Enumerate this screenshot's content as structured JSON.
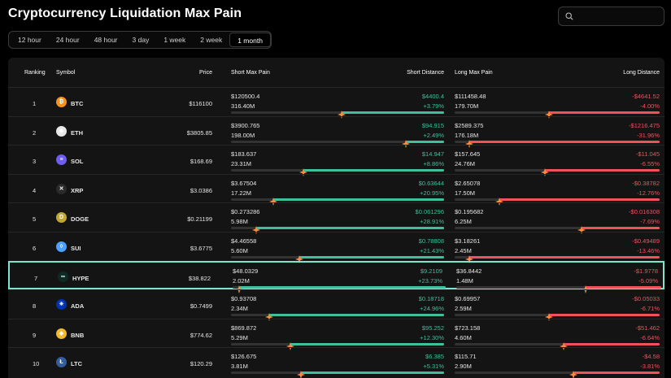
{
  "page_title": "Cryptocurrency Liquidation Max Pain",
  "tabs": [
    {
      "label": "12 hour",
      "active": false
    },
    {
      "label": "24 hour",
      "active": false
    },
    {
      "label": "48 hour",
      "active": false
    },
    {
      "label": "3 day",
      "active": false
    },
    {
      "label": "1 week",
      "active": false
    },
    {
      "label": "2 week",
      "active": false
    },
    {
      "label": "1 month",
      "active": true
    }
  ],
  "columns": {
    "ranking": "Ranking",
    "symbol": "Symbol",
    "price": "Price",
    "short_max_pain": "Short Max Pain",
    "short_distance": "Short Distance",
    "long_max_pain": "Long Max Pain",
    "long_distance": "Long Distance"
  },
  "colors": {
    "positive": "#3fbf9c",
    "negative": "#f0525c",
    "highlight_border": "#7fe3cf",
    "marker": "#ff8a3d"
  },
  "rows": [
    {
      "rank": "1",
      "symbol": "BTC",
      "icon": "bitcoin-icon",
      "icon_color": "#f7931a",
      "icon_glyph": "₿",
      "price": "$116100",
      "short_max_pain": "$120500.4",
      "short_oi": "316.40M",
      "short_distance_value": "$4400.4",
      "short_distance_pct": "+3.79%",
      "long_max_pain": "$111458.48",
      "long_oi": "179.70M",
      "long_distance_value": "-$4641.52",
      "long_distance_pct": "-4.00%",
      "short_bar_level": 0.48,
      "long_bar_level": 0.54,
      "highlighted": false
    },
    {
      "rank": "2",
      "symbol": "ETH",
      "icon": "ethereum-icon",
      "icon_color": "#e8e8e8",
      "icon_glyph": "◆",
      "price": "$3805.85",
      "short_max_pain": "$3900.765",
      "short_oi": "198.00M",
      "short_distance_value": "$94.915",
      "short_distance_pct": "+2.49%",
      "long_max_pain": "$2589.375",
      "long_oi": "176.18M",
      "long_distance_value": "-$1216.475",
      "long_distance_pct": "-31.96%",
      "short_bar_level": 0.18,
      "long_bar_level": 0.93,
      "highlighted": false
    },
    {
      "rank": "3",
      "symbol": "SOL",
      "icon": "solana-icon",
      "icon_color": "#6f5cf0",
      "icon_glyph": "≡",
      "price": "$168.69",
      "short_max_pain": "$183.637",
      "short_oi": "23.31M",
      "short_distance_value": "$14.947",
      "short_distance_pct": "+8.86%",
      "long_max_pain": "$157.645",
      "long_oi": "24.76M",
      "long_distance_value": "-$11.045",
      "long_distance_pct": "-6.55%",
      "short_bar_level": 0.66,
      "long_bar_level": 0.56,
      "highlighted": false
    },
    {
      "rank": "4",
      "symbol": "XRP",
      "icon": "xrp-icon",
      "icon_color": "#2a2a2a",
      "icon_glyph": "✕",
      "price": "$3.0386",
      "short_max_pain": "$3.67504",
      "short_oi": "17.22M",
      "short_distance_value": "$0.63644",
      "short_distance_pct": "+20.95%",
      "long_max_pain": "$2.65078",
      "long_oi": "17.50M",
      "long_distance_value": "-$0.38782",
      "long_distance_pct": "-12.76%",
      "short_bar_level": 0.8,
      "long_bar_level": 0.78,
      "highlighted": false
    },
    {
      "rank": "5",
      "symbol": "DOGE",
      "icon": "dogecoin-icon",
      "icon_color": "#c2a633",
      "icon_glyph": "D",
      "price": "$0.21199",
      "short_max_pain": "$0.273286",
      "short_oi": "5.98M",
      "short_distance_value": "$0.061296",
      "short_distance_pct": "+28.91%",
      "long_max_pain": "$0.195682",
      "long_oi": "6.25M",
      "long_distance_value": "-$0.016308",
      "long_distance_pct": "-7.69%",
      "short_bar_level": 0.88,
      "long_bar_level": 0.38,
      "highlighted": false
    },
    {
      "rank": "6",
      "symbol": "SUI",
      "icon": "sui-icon",
      "icon_color": "#4da2ff",
      "icon_glyph": "◊",
      "price": "$3.6775",
      "short_max_pain": "$4.46558",
      "short_oi": "5.60M",
      "short_distance_value": "$0.78808",
      "short_distance_pct": "+21.43%",
      "long_max_pain": "$3.18261",
      "long_oi": "2.45M",
      "long_distance_value": "-$0.49489",
      "long_distance_pct": "-13.46%",
      "short_bar_level": 0.68,
      "long_bar_level": 0.93,
      "highlighted": false
    },
    {
      "rank": "7",
      "symbol": "HYPE",
      "icon": "hyperliquid-icon",
      "icon_color": "#0d2b25",
      "icon_glyph": "∞",
      "price": "$38.822",
      "short_max_pain": "$48.0329",
      "short_oi": "2.02M",
      "short_distance_value": "$9.2109",
      "short_distance_pct": "+23.73%",
      "long_max_pain": "$36.8442",
      "long_oi": "1.48M",
      "long_distance_value": "-$1.9778",
      "long_distance_pct": "-5.09%",
      "short_bar_level": 0.97,
      "long_bar_level": 0.37,
      "highlighted": true
    },
    {
      "rank": "8",
      "symbol": "ADA",
      "icon": "cardano-icon",
      "icon_color": "#0033ad",
      "icon_glyph": "✳",
      "price": "$0.7499",
      "short_max_pain": "$0.93708",
      "short_oi": "2.34M",
      "short_distance_value": "$0.18718",
      "short_distance_pct": "+24.96%",
      "long_max_pain": "$0.69957",
      "long_oi": "2.59M",
      "long_distance_value": "-$0.05033",
      "long_distance_pct": "-6.71%",
      "short_bar_level": 0.82,
      "long_bar_level": 0.54,
      "highlighted": false
    },
    {
      "rank": "9",
      "symbol": "BNB",
      "icon": "bnb-icon",
      "icon_color": "#f3ba2f",
      "icon_glyph": "◈",
      "price": "$774.62",
      "short_max_pain": "$869.872",
      "short_oi": "5.29M",
      "short_distance_value": "$95.252",
      "short_distance_pct": "+12.30%",
      "long_max_pain": "$723.158",
      "long_oi": "4.60M",
      "long_distance_value": "-$51.462",
      "long_distance_pct": "-6.64%",
      "short_bar_level": 0.72,
      "long_bar_level": 0.47,
      "highlighted": false
    },
    {
      "rank": "10",
      "symbol": "LTC",
      "icon": "litecoin-icon",
      "icon_color": "#345d9d",
      "icon_glyph": "Ł",
      "price": "$120.29",
      "short_max_pain": "$126.675",
      "short_oi": "3.81M",
      "short_distance_value": "$6.385",
      "short_distance_pct": "+5.31%",
      "long_max_pain": "$115.71",
      "long_oi": "2.90M",
      "long_distance_value": "-$4.58",
      "long_distance_pct": "-3.81%",
      "short_bar_level": 0.67,
      "long_bar_level": 0.42,
      "highlighted": false
    }
  ]
}
